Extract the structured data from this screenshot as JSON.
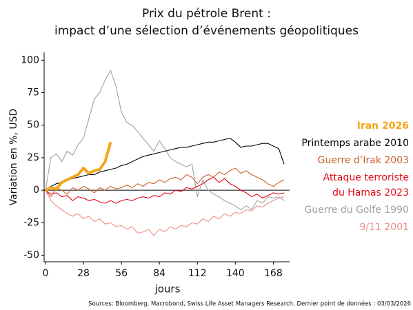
{
  "chart_data": {
    "type": "line",
    "title": "Prix du pétrole Brent :\nimpact d’une sélection d’événements géopolitiques",
    "y_label": "Variation en %, USD",
    "x_label": "jours",
    "source": "Sources: Bloomberg, Macrobond, Swiss Life Asset Managers Research. Dernier point de données : 03/03/2026",
    "x": [
      0,
      4,
      8,
      12,
      16,
      20,
      24,
      28,
      32,
      36,
      40,
      44,
      48,
      52,
      56,
      60,
      64,
      68,
      72,
      76,
      80,
      84,
      88,
      92,
      96,
      100,
      104,
      108,
      112,
      116,
      120,
      124,
      128,
      132,
      136,
      140,
      144,
      148,
      152,
      156,
      160,
      164,
      168,
      172,
      176
    ],
    "series": [
      {
        "name": "Iran 2026",
        "color": "#f5a31a",
        "values": [
          0,
          2,
          1,
          6,
          8,
          10,
          12,
          17,
          13,
          15,
          16,
          22,
          37,
          null,
          null,
          null,
          null,
          null,
          null,
          null,
          null,
          null,
          null,
          null,
          null,
          null,
          null,
          null,
          null,
          null,
          null,
          null,
          null,
          null,
          null,
          null,
          null,
          null,
          null,
          null,
          null,
          null,
          null,
          null,
          null
        ]
      },
      {
        "name": "Printemps arabe 2010",
        "color": "#000000",
        "values": [
          0,
          3,
          5,
          6,
          8,
          9,
          10,
          11,
          12,
          12,
          14,
          15,
          16,
          17,
          19,
          20,
          22,
          24,
          26,
          27,
          28,
          29,
          30,
          31,
          32,
          33,
          33,
          34,
          35,
          36,
          37,
          37,
          38,
          39,
          40,
          37,
          33,
          34,
          34,
          35,
          36,
          36,
          34,
          32,
          20
        ]
      },
      {
        "name": "Guerre d’Irak 2003",
        "color": "#c8602a",
        "values": [
          0,
          -5,
          2,
          0,
          -3,
          2,
          0,
          3,
          1,
          -2,
          2,
          0,
          3,
          1,
          2,
          4,
          2,
          5,
          3,
          6,
          5,
          8,
          6,
          9,
          10,
          8,
          12,
          10,
          5,
          10,
          12,
          10,
          14,
          12,
          15,
          17,
          13,
          15,
          12,
          10,
          8,
          5,
          3,
          6,
          8
        ]
      },
      {
        "name": "Attaque terroriste\ndu Hamas 2023",
        "color": "#e30613",
        "values": [
          0,
          -3,
          -2,
          -5,
          -4,
          -8,
          -5,
          -6,
          -8,
          -7,
          -9,
          -10,
          -8,
          -10,
          -8,
          -7,
          -8,
          -6,
          -5,
          -6,
          -4,
          -5,
          -2,
          -3,
          0,
          -1,
          2,
          1,
          3,
          5,
          8,
          10,
          6,
          9,
          5,
          3,
          0,
          -2,
          -5,
          -3,
          -6,
          -4,
          -2,
          -3,
          -2
        ]
      },
      {
        "name": "Guerre du Golfe 1990",
        "color": "#a0a0a0",
        "values": [
          0,
          25,
          28,
          22,
          30,
          27,
          35,
          40,
          55,
          70,
          75,
          85,
          92,
          80,
          60,
          52,
          50,
          45,
          40,
          35,
          30,
          38,
          32,
          25,
          22,
          20,
          18,
          20,
          -5,
          8,
          0,
          -3,
          -5,
          -8,
          -10,
          -12,
          -15,
          -12,
          -15,
          -8,
          -10,
          -5,
          -6,
          -5,
          -8
        ]
      },
      {
        "name": "9/11 2001",
        "color": "#f28c8c",
        "values": [
          0,
          -8,
          -12,
          -15,
          -18,
          -20,
          -18,
          -22,
          -20,
          -24,
          -22,
          -26,
          -25,
          -28,
          -27,
          -30,
          -28,
          -33,
          -32,
          -30,
          -35,
          -30,
          -32,
          -28,
          -30,
          -27,
          -28,
          -25,
          -26,
          -22,
          -24,
          -20,
          -22,
          -18,
          -20,
          -17,
          -18,
          -15,
          -16,
          -12,
          -13,
          -10,
          -8,
          -6,
          -5
        ]
      }
    ],
    "xlim": [
      -1,
      180
    ],
    "ylim": [
      -55,
      106
    ],
    "xticks": [
      0,
      28,
      56,
      84,
      112,
      140,
      168
    ],
    "yticks": [
      -50,
      -25,
      0,
      25,
      50,
      75,
      100
    ]
  }
}
